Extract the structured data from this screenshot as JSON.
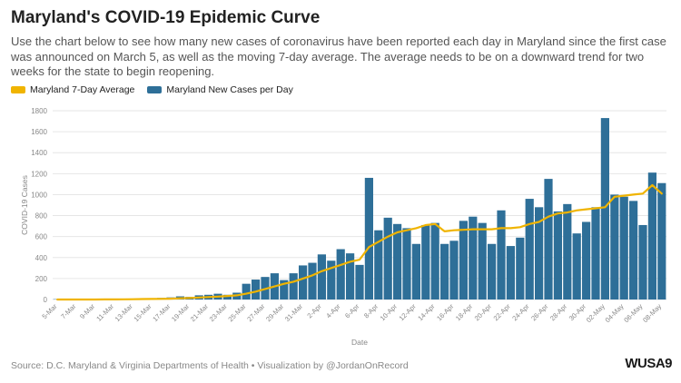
{
  "header": {
    "title": "Maryland's COVID-19 Epidemic Curve",
    "subtitle": "Use the chart below to see how many new cases of coronavirus have been reported each day in Maryland since the first case was announced on March 5, as well as the moving 7-day average. The average needs to be on a downward trend for two weeks for the state to begin reopening."
  },
  "legend": {
    "avg_label": "Maryland 7-Day Average",
    "cases_label": "Maryland New Cases per Day"
  },
  "footer": {
    "source": "Source: D.C. Maryland & Virginia Departments of Health • Visualization by @JordanOnRecord",
    "logo": "WUSA9"
  },
  "colors": {
    "bar": "#2e6f98",
    "line": "#f0b400",
    "grid": "#e6e6e6",
    "axis_text": "#888888"
  },
  "chart_data": {
    "type": "bar",
    "title": "Maryland's COVID-19 Epidemic Curve",
    "xlabel": "Date",
    "ylabel": "COVID-19 Cases",
    "ylim": [
      0,
      1800
    ],
    "yticks": [
      0,
      200,
      400,
      600,
      800,
      1000,
      1200,
      1400,
      1600,
      1800
    ],
    "grid": true,
    "legend_position": "top-left",
    "x": [
      "5-Mar",
      "6-Mar",
      "7-Mar",
      "8-Mar",
      "9-Mar",
      "10-Mar",
      "11-Mar",
      "12-Mar",
      "13-Mar",
      "14-Mar",
      "15-Mar",
      "16-Mar",
      "17-Mar",
      "18-Mar",
      "19-Mar",
      "20-Mar",
      "21-Mar",
      "22-Mar",
      "23-Mar",
      "24-Mar",
      "25-Mar",
      "26-Mar",
      "27-Mar",
      "28-Mar",
      "29-Mar",
      "30-Mar",
      "31-Mar",
      "1-Apr",
      "2-Apr",
      "3-Apr",
      "4-Apr",
      "5-Apr",
      "6-Apr",
      "7-Apr",
      "8-Apr",
      "9-Apr",
      "10-Apr",
      "11-Apr",
      "12-Apr",
      "13-Apr",
      "14-Apr",
      "15-Apr",
      "16-Apr",
      "17-Apr",
      "18-Apr",
      "19-Apr",
      "20-Apr",
      "21-Apr",
      "22-Apr",
      "23-Apr",
      "24-Apr",
      "25-Apr",
      "26-Apr",
      "27-Apr",
      "28-Apr",
      "29-Apr",
      "30-Apr",
      "1-May",
      "2-May",
      "3-May",
      "4-May",
      "5-May",
      "6-May",
      "7-May",
      "8-May"
    ],
    "tick_labels": [
      "5-Mar",
      "7-Mar",
      "9-Mar",
      "11-Mar",
      "13-Mar",
      "15-Mar",
      "17-Mar",
      "19-Mar",
      "21-Mar",
      "23-Mar",
      "25-Mar",
      "27-Mar",
      "29-Mar",
      "31-Mar",
      "2-Apr",
      "4-Apr",
      "6-Apr",
      "8-Apr",
      "10-Apr",
      "12-Apr",
      "14-Apr",
      "16-Apr",
      "18-Apr",
      "20-Apr",
      "22-Apr",
      "24-Apr",
      "26-Apr",
      "28-Apr",
      "30-Apr",
      "02-May",
      "04-May",
      "06-May",
      "08-May"
    ],
    "series": [
      {
        "name": "Maryland New Cases per Day",
        "type": "bar",
        "values": [
          3,
          0,
          0,
          2,
          1,
          3,
          3,
          5,
          5,
          8,
          11,
          15,
          20,
          30,
          25,
          40,
          45,
          55,
          45,
          65,
          150,
          190,
          215,
          250,
          185,
          250,
          325,
          350,
          430,
          370,
          480,
          440,
          330,
          1160,
          660,
          780,
          720,
          680,
          530,
          710,
          730,
          530,
          560,
          750,
          790,
          730,
          530,
          850,
          510,
          590,
          960,
          880,
          1150,
          840,
          910,
          630,
          740,
          880,
          1730,
          1000,
          980,
          940,
          710,
          1210,
          1110
        ]
      },
      {
        "name": "Maryland 7-Day Average",
        "type": "line",
        "values": [
          0,
          0,
          0,
          0,
          0,
          1,
          1,
          2,
          3,
          4,
          5,
          6,
          8,
          11,
          15,
          19,
          23,
          28,
          34,
          40,
          55,
          75,
          100,
          125,
          150,
          170,
          200,
          230,
          270,
          300,
          330,
          360,
          380,
          500,
          550,
          600,
          640,
          660,
          680,
          710,
          720,
          650,
          660,
          665,
          670,
          670,
          670,
          680,
          680,
          690,
          720,
          740,
          790,
          820,
          830,
          850,
          860,
          870,
          880,
          980,
          990,
          1000,
          1010,
          1090,
          1010
        ]
      }
    ]
  }
}
